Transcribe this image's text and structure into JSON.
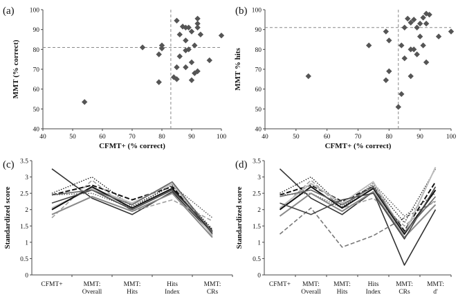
{
  "chart_data": [
    {
      "id": "a",
      "type": "scatter",
      "panel_label": "(a)",
      "xlabel": "CFMT+ (% correct)",
      "ylabel": "MMT (% correct)",
      "xlim": [
        40,
        100
      ],
      "ylim": [
        40,
        100
      ],
      "xticks": [
        "40",
        "50",
        "60",
        "70",
        "80",
        "90",
        "100"
      ],
      "yticks": [
        "40",
        "50",
        "60",
        "70",
        "80",
        "90",
        "100"
      ],
      "ref_x": 83,
      "ref_y": 81,
      "points": [
        [
          54,
          53.5
        ],
        [
          73.5,
          81
        ],
        [
          79,
          77.5
        ],
        [
          79,
          63.5
        ],
        [
          80,
          80.5
        ],
        [
          80,
          82
        ],
        [
          84,
          66
        ],
        [
          85,
          65
        ],
        [
          85,
          71
        ],
        [
          85,
          94.5
        ],
        [
          86,
          87.5
        ],
        [
          86,
          76.5
        ],
        [
          87,
          91.5
        ],
        [
          88,
          91
        ],
        [
          88,
          84.5
        ],
        [
          88,
          79.5
        ],
        [
          88,
          71
        ],
        [
          89,
          80
        ],
        [
          89,
          91
        ],
        [
          90,
          73.5
        ],
        [
          90,
          89
        ],
        [
          90,
          64.5
        ],
        [
          91,
          68
        ],
        [
          91,
          82
        ],
        [
          92,
          91
        ],
        [
          92,
          93
        ],
        [
          92,
          95.5
        ],
        [
          92,
          69
        ],
        [
          93,
          87.5
        ],
        [
          96,
          74.5
        ],
        [
          100,
          87
        ]
      ]
    },
    {
      "id": "b",
      "type": "scatter",
      "panel_label": "(b)",
      "xlabel": "CFMT+ (% correct)",
      "ylabel": "MMT % hits",
      "xlim": [
        40,
        100
      ],
      "ylim": [
        40,
        100
      ],
      "xticks": [
        "40",
        "50",
        "60",
        "70",
        "80",
        "90",
        "100"
      ],
      "yticks": [
        "40",
        "50",
        "60",
        "70",
        "80",
        "90",
        "100"
      ],
      "ref_x": 83,
      "ref_y": 91,
      "points": [
        [
          54,
          66.5
        ],
        [
          73.5,
          82
        ],
        [
          79,
          89
        ],
        [
          79,
          64.5
        ],
        [
          80,
          69
        ],
        [
          80,
          84.5
        ],
        [
          83,
          51
        ],
        [
          84,
          57.5
        ],
        [
          84,
          82
        ],
        [
          85,
          91
        ],
        [
          85,
          75.5
        ],
        [
          86,
          95.5
        ],
        [
          87,
          93.5
        ],
        [
          87,
          66.5
        ],
        [
          87,
          80
        ],
        [
          88,
          95
        ],
        [
          88,
          80
        ],
        [
          89,
          91
        ],
        [
          89,
          77.5
        ],
        [
          90,
          93
        ],
        [
          90,
          86.5
        ],
        [
          91,
          82
        ],
        [
          91,
          96
        ],
        [
          92,
          98
        ],
        [
          92,
          93
        ],
        [
          92,
          73.5
        ],
        [
          93,
          97.5
        ],
        [
          96,
          86.5
        ],
        [
          100,
          89
        ]
      ]
    },
    {
      "id": "c",
      "type": "line",
      "panel_label": "(c)",
      "ylabel": "Standardized score",
      "categories": [
        "CFMT+",
        "MMT: Overall",
        "MMT: Hits",
        "Hits Index",
        "MMT: CRs"
      ],
      "ylim": [
        0,
        3.5
      ],
      "yticks": [
        "0",
        "0.5",
        "1",
        "1.5",
        "2",
        "2.5",
        "3",
        "3.5"
      ],
      "series": [
        {
          "values": [
            3.25,
            2.35,
            1.85,
            2.55,
            1.25
          ],
          "color": "#333333",
          "dash": "",
          "width": 1.6
        },
        {
          "values": [
            2.45,
            2.75,
            2.3,
            2.7,
            1.35
          ],
          "color": "#111111",
          "dash": "7 3",
          "width": 2
        },
        {
          "values": [
            2.5,
            3.0,
            2.1,
            2.75,
            1.4
          ],
          "color": "#222222",
          "dash": "1.5 2",
          "width": 1.4
        },
        {
          "values": [
            2.45,
            2.5,
            2.05,
            2.75,
            1.75
          ],
          "color": "#555555",
          "dash": "1.5 2",
          "width": 1.4
        },
        {
          "values": [
            1.75,
            2.9,
            1.95,
            2.3,
            1.65
          ],
          "color": "#a0a0a0",
          "dash": "6 3",
          "width": 1.6
        },
        {
          "values": [
            2.05,
            2.65,
            2.2,
            2.8,
            1.2
          ],
          "color": "#bbbbbb",
          "dash": "",
          "width": 2
        },
        {
          "values": [
            1.85,
            2.4,
            1.95,
            2.5,
            1.15
          ],
          "color": "#8a8a8a",
          "dash": "",
          "width": 2
        },
        {
          "values": [
            2.0,
            2.7,
            2.05,
            2.65,
            1.3
          ],
          "color": "#111111",
          "dash": "",
          "width": 2
        },
        {
          "values": [
            2.2,
            2.6,
            2.0,
            2.6,
            1.35
          ],
          "color": "#444444",
          "dash": "",
          "width": 1.6
        },
        {
          "values": [
            2.45,
            2.6,
            2.15,
            2.85,
            1.3
          ],
          "color": "#666666",
          "dash": "",
          "width": 1.6
        }
      ]
    },
    {
      "id": "d",
      "type": "line",
      "panel_label": "(d)",
      "ylabel": "Standardized score",
      "categories": [
        "CFMT+",
        "MMT: Overall",
        "MMT: Hits",
        "Hits Index",
        "MMT: CRs",
        "MMT: d'"
      ],
      "ylim": [
        0,
        3.5
      ],
      "yticks": [
        "0",
        "0.5",
        "1",
        "1.5",
        "2",
        "2.5",
        "3",
        "3.5"
      ],
      "series": [
        {
          "values": [
            3.25,
            2.35,
            1.85,
            2.55,
            0.3,
            2.0
          ],
          "color": "#333333",
          "dash": "",
          "width": 1.6
        },
        {
          "values": [
            1.25,
            2.05,
            0.85,
            1.2,
            1.75,
            2.25
          ],
          "color": "#777777",
          "dash": "6 3",
          "width": 1.6
        },
        {
          "values": [
            2.45,
            2.75,
            2.25,
            2.7,
            1.35,
            2.85
          ],
          "color": "#111111",
          "dash": "7 3",
          "width": 2
        },
        {
          "values": [
            2.5,
            3.0,
            2.1,
            2.75,
            1.6,
            3.25
          ],
          "color": "#222222",
          "dash": "1.5 2",
          "width": 1.4
        },
        {
          "values": [
            2.45,
            2.5,
            2.05,
            2.8,
            1.8,
            2.5
          ],
          "color": "#555555",
          "dash": "1.5 2",
          "width": 1.4
        },
        {
          "values": [
            2.0,
            2.9,
            2.05,
            2.35,
            1.5,
            2.3
          ],
          "color": "#a0a0a0",
          "dash": "6 3",
          "width": 1.6
        },
        {
          "values": [
            2.05,
            2.8,
            2.2,
            2.85,
            1.25,
            3.3
          ],
          "color": "#bbbbbb",
          "dash": "",
          "width": 2
        },
        {
          "values": [
            1.8,
            2.5,
            1.95,
            2.55,
            1.15,
            2.15
          ],
          "color": "#8a8a8a",
          "dash": "",
          "width": 2
        },
        {
          "values": [
            2.0,
            2.7,
            2.05,
            2.65,
            1.25,
            2.6
          ],
          "color": "#111111",
          "dash": "",
          "width": 2
        },
        {
          "values": [
            2.2,
            1.85,
            2.3,
            2.5,
            1.1,
            2.7
          ],
          "color": "#444444",
          "dash": "",
          "width": 1.6
        },
        {
          "values": [
            2.4,
            2.6,
            2.15,
            2.7,
            1.3,
            2.4
          ],
          "color": "#666666",
          "dash": "",
          "width": 1.6
        }
      ]
    }
  ]
}
